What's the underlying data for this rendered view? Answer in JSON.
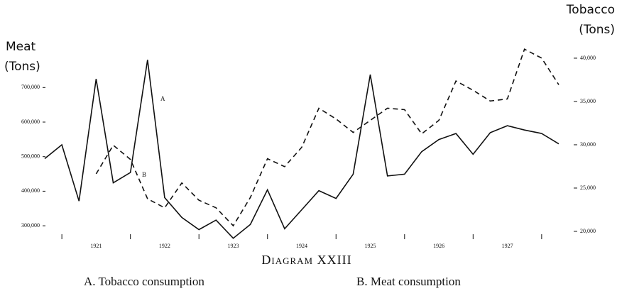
{
  "chart_data": {
    "type": "line",
    "title": "Diagram XXIII",
    "y_label": [
      "Meat",
      "(Tons)"
    ],
    "y2_label": [
      "Tobacco",
      "(Tons)"
    ],
    "x": [
      1920.75,
      1921,
      1921.25,
      1921.5,
      1921.75,
      1922,
      1922.25,
      1922.5,
      1922.75,
      1923,
      1923.25,
      1923.5,
      1923.75,
      1924,
      1924.25,
      1924.5,
      1924.75,
      1925,
      1925.25,
      1925.5,
      1925.75,
      1926,
      1926.25,
      1926.5,
      1926.75,
      1927,
      1927.25,
      1927.5,
      1927.75,
      1928,
      1928.25
    ],
    "xlim": [
      1920.75,
      1928.25
    ],
    "xticks": [
      1921,
      1922,
      1923,
      1924,
      1925,
      1926,
      1927,
      1928
    ],
    "year_labels": [
      "1921",
      "1922",
      "1923",
      "1924",
      "1925",
      "1926",
      "1927"
    ],
    "ylim": [
      255000,
      830000
    ],
    "yticks": [
      {
        "value": 300000,
        "label": "300,000"
      },
      {
        "value": 400000,
        "label": "400,000"
      },
      {
        "value": 500000,
        "label": "500,000"
      },
      {
        "value": 600000,
        "label": "600,000"
      },
      {
        "value": 700000,
        "label": "700,000"
      }
    ],
    "y2lim": [
      18850,
      41800
    ],
    "y2ticks": [
      {
        "value": 20000,
        "label": "20,000"
      },
      {
        "value": 25000,
        "label": "25,000"
      },
      {
        "value": 30000,
        "label": "30,000"
      },
      {
        "value": 35000,
        "label": "35,000"
      },
      {
        "value": 40000,
        "label": "40,000"
      }
    ],
    "series": [
      {
        "name": "A. Tobacco consumption",
        "marker": "A",
        "color": "#111111",
        "dash": false,
        "axis": "y2",
        "values": [
          28400,
          30000,
          23500,
          37600,
          25600,
          26800,
          39800,
          23900,
          21600,
          20200,
          21300,
          19200,
          20800,
          24800,
          20300,
          22500,
          24700,
          23800,
          26600,
          38100,
          26400,
          26600,
          29200,
          30600,
          31300,
          28900,
          31400,
          32200,
          31700,
          31300,
          30100
        ]
      },
      {
        "name": "B. Meat consumption",
        "marker": "B",
        "color": "#111111",
        "dash": true,
        "axis": "y",
        "values": [
          null,
          null,
          null,
          450000,
          533000,
          492000,
          378000,
          352000,
          424000,
          374000,
          352000,
          300000,
          382000,
          494000,
          471000,
          527000,
          640000,
          609000,
          570000,
          605000,
          640000,
          636000,
          566000,
          605000,
          719000,
          692000,
          661000,
          667000,
          811000,
          785000,
          708000
        ]
      }
    ]
  }
}
